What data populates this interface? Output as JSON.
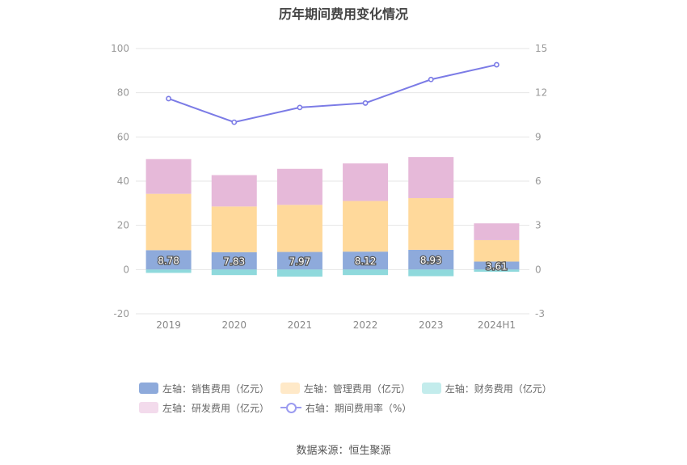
{
  "chart_data": {
    "type": "bar",
    "title": "历年期间费用变化情况",
    "categories": [
      "2019",
      "2020",
      "2021",
      "2022",
      "2023",
      "2024H1"
    ],
    "left_axis": {
      "min": -20,
      "max": 100,
      "ticks": [
        -20,
        0,
        20,
        40,
        60,
        80,
        100
      ]
    },
    "right_axis": {
      "min": -3,
      "max": 15,
      "ticks": [
        -3,
        0,
        3,
        6,
        9,
        12,
        15
      ]
    },
    "stacked": true,
    "series": [
      {
        "name": "左轴：销售费用（亿元）",
        "axis": "left",
        "kind": "bar",
        "color": "#8eaadb",
        "values": [
          8.78,
          7.83,
          7.97,
          8.12,
          8.93,
          3.61
        ],
        "labels": [
          "8.78",
          "7.83",
          "7.97",
          "8.12",
          "8.93",
          "3.61"
        ]
      },
      {
        "name": "左轴：管理费用（亿元）",
        "axis": "left",
        "kind": "bar",
        "color": "#ffd99b",
        "values": [
          25.5,
          20.7,
          21.3,
          22.9,
          23.4,
          9.7
        ]
      },
      {
        "name": "左轴：财务费用（亿元）",
        "axis": "left",
        "kind": "bar",
        "color": "#8fd9dc",
        "values": [
          -1.5,
          -2.5,
          -3.2,
          -2.5,
          -3.0,
          -1.0
        ]
      },
      {
        "name": "左轴：研发费用（亿元）",
        "axis": "left",
        "kind": "bar",
        "color": "#e6b9d9",
        "values": [
          15.7,
          14.2,
          16.3,
          17.0,
          18.6,
          7.6
        ]
      },
      {
        "name": "右轴：期间费用率（%）",
        "axis": "right",
        "kind": "line",
        "color": "#7b7be6",
        "values": [
          11.6,
          10.0,
          11.0,
          11.3,
          12.9,
          13.9
        ]
      }
    ],
    "legend_position": "bottom",
    "grid": true
  },
  "legend_colors": {
    "sales": "#8eaadb",
    "admin": "#ffd99b",
    "finance": "#c3ecec",
    "rnd": "#f3dbec",
    "rate": "#9b9bf0"
  },
  "source": "数据来源：恒生聚源"
}
